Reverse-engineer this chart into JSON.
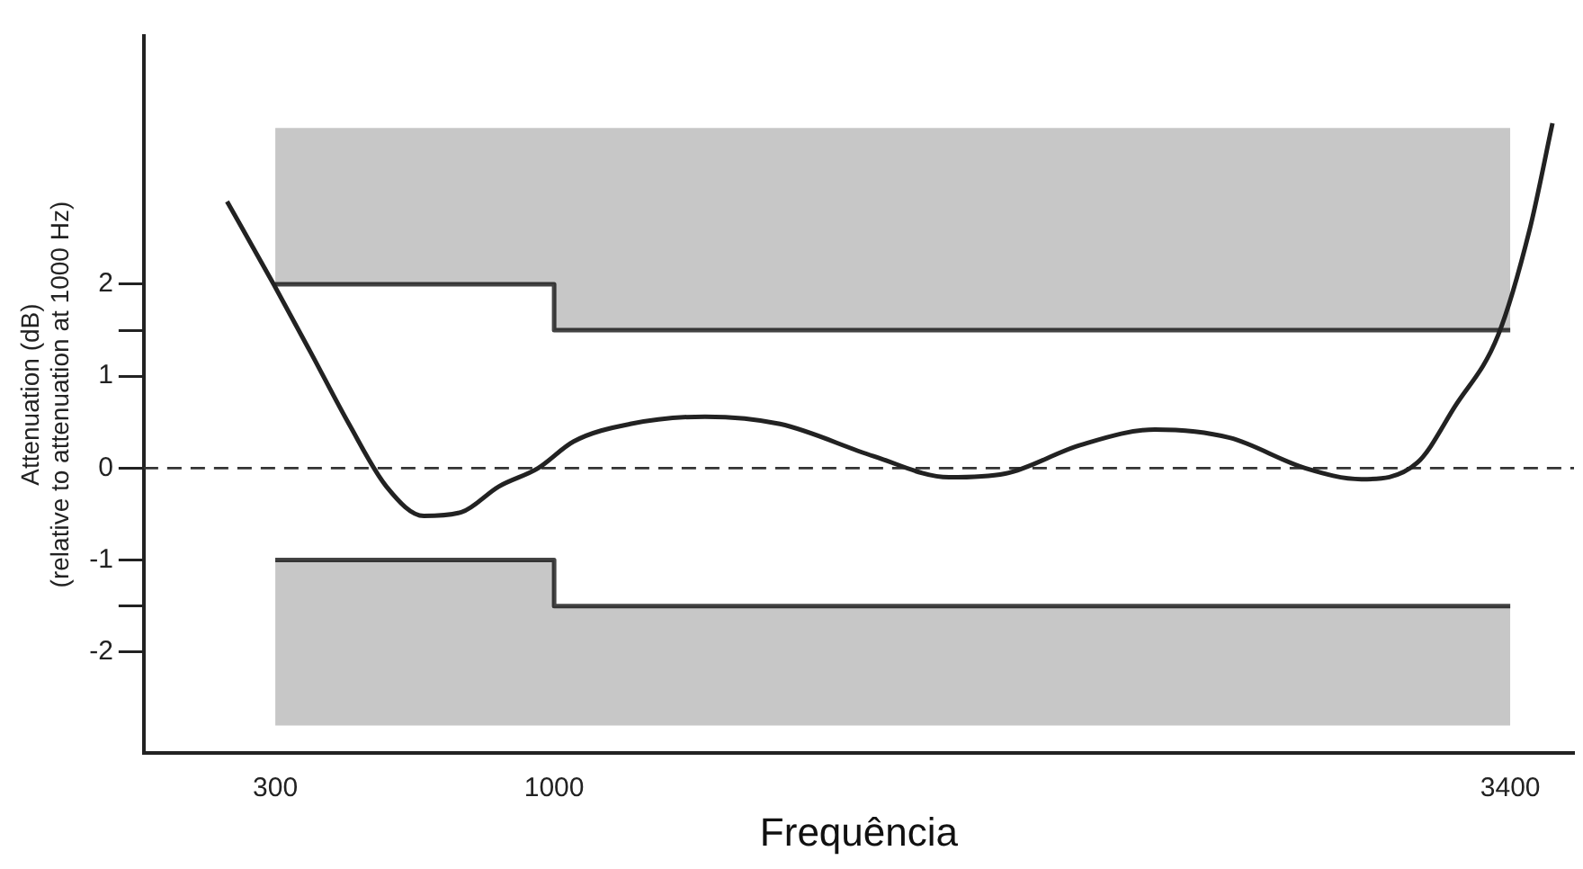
{
  "chart_data": {
    "type": "line",
    "xlabel": "Frequência",
    "ylabel": "Attenuation (dB)\n(relative to attenuation at 1000 Hz)",
    "xlim": [
      -30,
      3560
    ],
    "xticks": [
      300,
      1000,
      3400
    ],
    "ylim": [
      -3.1,
      4.7
    ],
    "yticks": [
      -2,
      {
        "value": -1.5,
        "label": null
      },
      -1,
      0,
      1,
      {
        "value": 1.5,
        "label": null
      },
      2
    ],
    "grid": false,
    "legend": false,
    "marker": "none",
    "ref_lines": [
      {
        "axis": "y",
        "value": 0,
        "line_style": "dashed",
        "color": "#333333"
      }
    ],
    "series": [
      {
        "color": "#222222",
        "line_style": "solid",
        "x": [
          179,
          296,
          390,
          485,
          579,
          673,
          767,
          861,
          960,
          1049,
          1191,
          1379,
          1567,
          1802,
          1991,
          2132,
          2320,
          2508,
          2696,
          2885,
          3026,
          3167,
          3261,
          3369,
          3449,
          3506
        ],
        "values": [
          2.9,
          2.0,
          1.25,
          0.48,
          -0.2,
          -0.52,
          -0.48,
          -0.2,
          0,
          0.29,
          0.48,
          0.56,
          0.48,
          0.13,
          -0.1,
          -0.06,
          0.25,
          0.42,
          0.33,
          0,
          -0.12,
          0.06,
          0.67,
          1.44,
          2.6,
          3.75
        ]
      },
      {
        "color": "#444444",
        "x": [
          300,
          1000,
          1000,
          3400
        ],
        "values": [
          2,
          2,
          1.5,
          1.5
        ],
        "lower": [
          2,
          2,
          1.5,
          1.5
        ],
        "upper": [
          3.7,
          3.7,
          3.7,
          3.7
        ]
      },
      {
        "color": "#444444",
        "x": [
          300,
          1000,
          1000,
          3400
        ],
        "values": [
          -1,
          -1,
          -1.5,
          -1.5
        ],
        "lower": [
          -2.8,
          -2.8,
          -2.8,
          -2.8
        ],
        "upper": [
          -1,
          -1,
          -1.5,
          -1.5
        ]
      }
    ]
  }
}
